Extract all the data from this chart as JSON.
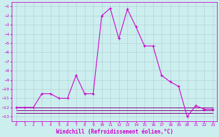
{
  "x": [
    0,
    1,
    2,
    3,
    4,
    5,
    6,
    7,
    8,
    9,
    10,
    11,
    12,
    13,
    14,
    15,
    16,
    17,
    18,
    19,
    20,
    21,
    22,
    23
  ],
  "line1": [
    -12,
    -12,
    -12,
    -10.5,
    -10.5,
    -11,
    -11,
    -8.5,
    -10.5,
    -10.5,
    -2,
    -1.2,
    -4.5,
    -1.3,
    -3.2,
    -5.3,
    -5.3,
    -8.5,
    -9.2,
    -9.7,
    -13,
    -11.8,
    -12.2,
    -12.2
  ],
  "flat1": [
    -12,
    -12,
    -12,
    -12,
    -12,
    -12,
    -12,
    -12,
    -12,
    -12,
    -12,
    -12,
    -12,
    -12,
    -12,
    -12,
    -12,
    -12,
    -12,
    -12,
    -12,
    -12,
    -12,
    -12
  ],
  "flat2": [
    -12.3,
    -12.3,
    -12.3,
    -12.3,
    -12.3,
    -12.3,
    -12.3,
    -12.3,
    -12.3,
    -12.3,
    -12.3,
    -12.3,
    -12.3,
    -12.3,
    -12.3,
    -12.3,
    -12.3,
    -12.3,
    -12.3,
    -12.3,
    -12.3,
    -12.3,
    -12.3,
    -12.3
  ],
  "flat3": [
    -12.6,
    -12.6,
    -12.6,
    -12.6,
    -12.6,
    -12.6,
    -12.6,
    -12.6,
    -12.6,
    -12.6,
    -12.6,
    -12.6,
    -12.6,
    -12.6,
    -12.6,
    -12.6,
    -12.6,
    -12.6,
    -12.6,
    -12.6,
    -12.6,
    -12.6,
    -12.6,
    -12.6
  ],
  "line_color": "#cc00cc",
  "flat_color": "#880088",
  "bg_color": "#cceeee",
  "grid_color": "#aacccc",
  "ylim": [
    -13.5,
    -0.5
  ],
  "xlim": [
    -0.5,
    23.5
  ],
  "xlabel": "Windchill (Refroidissement éolien,°C)",
  "yticks": [
    -1,
    -2,
    -3,
    -4,
    -5,
    -6,
    -7,
    -8,
    -9,
    -10,
    -11,
    -12,
    -13
  ],
  "xticks": [
    0,
    1,
    2,
    3,
    4,
    5,
    6,
    7,
    8,
    9,
    10,
    11,
    12,
    13,
    14,
    15,
    16,
    17,
    18,
    19,
    20,
    21,
    22,
    23
  ],
  "tick_fontsize": 4.5,
  "xlabel_fontsize": 5.5
}
